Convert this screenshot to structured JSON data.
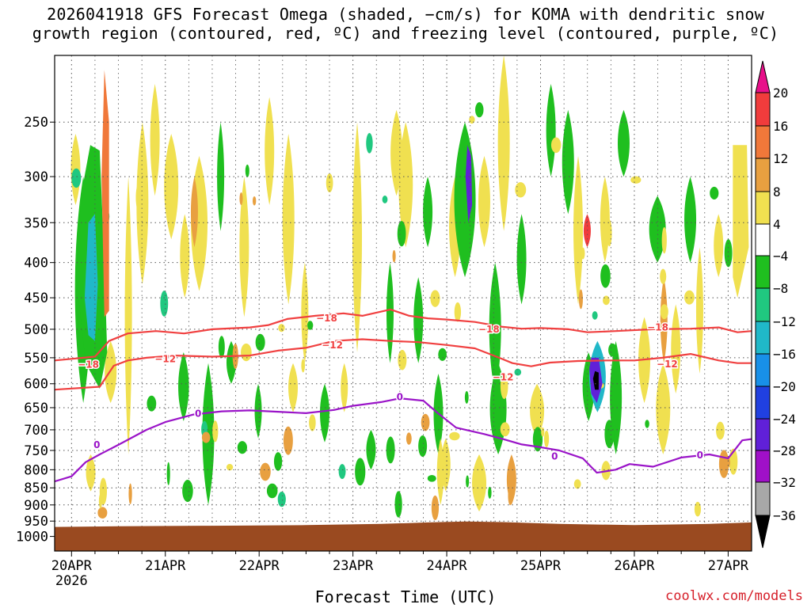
{
  "title_line1": "2026041918 GFS Forecast Omega (shaded, −cm/s) for KOMA with dendritic snow",
  "title_line2": "growth region (contoured, red, ºC) and freezing level (contoured, purple, ºC)",
  "xlabel": "Forecast Time (UTC)",
  "credit": "coolwx.com/models",
  "chart_data": {
    "type": "heatmap",
    "x_unit": "forecast day",
    "xlim": [
      19.82,
      27.25
    ],
    "x_ticks": [
      {
        "x": 20,
        "label": "20APR",
        "sub": "2026"
      },
      {
        "x": 21,
        "label": "21APR",
        "sub": ""
      },
      {
        "x": 22,
        "label": "22APR",
        "sub": ""
      },
      {
        "x": 23,
        "label": "23APR",
        "sub": ""
      },
      {
        "x": 24,
        "label": "24APR",
        "sub": ""
      },
      {
        "x": 25,
        "label": "25APR",
        "sub": ""
      },
      {
        "x": 26,
        "label": "26APR",
        "sub": ""
      },
      {
        "x": 27,
        "label": "27APR",
        "sub": ""
      }
    ],
    "y_unit": "hPa",
    "y_scale": "log",
    "ylim": [
      1050,
      200
    ],
    "y_ticks": [
      250,
      300,
      350,
      400,
      450,
      500,
      550,
      600,
      650,
      700,
      750,
      800,
      850,
      900,
      950,
      1000
    ],
    "grid": true,
    "colorbar": {
      "labels": [
        "20",
        "16",
        "12",
        "8",
        "4",
        "−4",
        "−8",
        "−12",
        "−16",
        "−20",
        "−24",
        "−28",
        "−32",
        "−36"
      ],
      "colors": {
        "top_arrow": "#e8108a",
        "c16_20": "#f03c3c",
        "c12_16": "#f0783a",
        "c8_12": "#e8a040",
        "c4_8": "#f0e050",
        "m4_4": "#ffffff",
        "m8_m4": "#1fbf1f",
        "m12_m8": "#20c880",
        "m16_m12": "#20b8c8",
        "m20_m16": "#1890e8",
        "m24_m20": "#2040e0",
        "m28_m24": "#6020d8",
        "m32_m28": "#a010c8",
        "m36_m32": "#a8a8a8",
        "bottom_arrow": "#000000"
      }
    },
    "terrain_color": "#9a4a20",
    "contours": [
      {
        "name": "-18C",
        "label": "−18",
        "color": "#f04040",
        "points": [
          [
            19.82,
            555
          ],
          [
            20.25,
            548
          ],
          [
            20.4,
            520
          ],
          [
            20.6,
            507
          ],
          [
            20.9,
            503
          ],
          [
            21.2,
            507
          ],
          [
            21.5,
            500
          ],
          [
            21.9,
            497
          ],
          [
            22.1,
            493
          ],
          [
            22.3,
            483
          ],
          [
            22.6,
            478
          ],
          [
            22.9,
            474
          ],
          [
            23.1,
            478
          ],
          [
            23.4,
            468
          ],
          [
            23.6,
            478
          ],
          [
            23.8,
            482
          ],
          [
            24.0,
            484
          ],
          [
            24.3,
            488
          ],
          [
            24.6,
            496
          ],
          [
            24.8,
            499
          ],
          [
            25.0,
            498
          ],
          [
            25.3,
            500
          ],
          [
            25.5,
            505
          ],
          [
            25.8,
            503
          ],
          [
            26.2,
            500
          ],
          [
            26.6,
            499
          ],
          [
            26.9,
            497
          ],
          [
            27.1,
            505
          ],
          [
            27.25,
            503
          ]
        ],
        "labels": [
          [
            20.18,
            563
          ],
          [
            22.72,
            482
          ],
          [
            24.45,
            500
          ],
          [
            26.25,
            497
          ]
        ]
      },
      {
        "name": "-12C",
        "label": "−12",
        "color": "#f04040",
        "points": [
          [
            19.82,
            612
          ],
          [
            20.3,
            606
          ],
          [
            20.45,
            565
          ],
          [
            20.6,
            555
          ],
          [
            20.8,
            550
          ],
          [
            21.1,
            546
          ],
          [
            21.5,
            548
          ],
          [
            21.9,
            546
          ],
          [
            22.2,
            537
          ],
          [
            22.5,
            532
          ],
          [
            22.8,
            520
          ],
          [
            23.1,
            517
          ],
          [
            23.4,
            520
          ],
          [
            23.7,
            522
          ],
          [
            24.0,
            527
          ],
          [
            24.3,
            533
          ],
          [
            24.5,
            546
          ],
          [
            24.7,
            560
          ],
          [
            24.9,
            566
          ],
          [
            25.1,
            559
          ],
          [
            25.4,
            556
          ],
          [
            25.7,
            555
          ],
          [
            26.0,
            555
          ],
          [
            26.3,
            550
          ],
          [
            26.6,
            543
          ],
          [
            26.9,
            555
          ],
          [
            27.1,
            560
          ],
          [
            27.25,
            560
          ]
        ],
        "labels": [
          [
            21.0,
            552
          ],
          [
            22.78,
            527
          ],
          [
            24.6,
            587
          ],
          [
            26.35,
            562
          ]
        ]
      },
      {
        "name": "0C",
        "label": "0",
        "color": "#9a14c8",
        "points": [
          [
            19.82,
            832
          ],
          [
            20.0,
            818
          ],
          [
            20.15,
            780
          ],
          [
            20.3,
            760
          ],
          [
            20.5,
            736
          ],
          [
            20.8,
            700
          ],
          [
            21.0,
            682
          ],
          [
            21.3,
            665
          ],
          [
            21.6,
            658
          ],
          [
            21.9,
            656
          ],
          [
            22.2,
            659
          ],
          [
            22.5,
            662
          ],
          [
            22.8,
            655
          ],
          [
            23.0,
            646
          ],
          [
            23.3,
            638
          ],
          [
            23.5,
            630
          ],
          [
            23.75,
            635
          ],
          [
            23.9,
            661
          ],
          [
            24.1,
            695
          ],
          [
            24.4,
            710
          ],
          [
            24.6,
            722
          ],
          [
            24.8,
            735
          ],
          [
            25.0,
            742
          ],
          [
            25.2,
            750
          ],
          [
            25.45,
            770
          ],
          [
            25.6,
            808
          ],
          [
            25.8,
            800
          ],
          [
            25.95,
            785
          ],
          [
            26.2,
            792
          ],
          [
            26.5,
            768
          ],
          [
            26.8,
            760
          ],
          [
            27.0,
            770
          ],
          [
            27.15,
            725
          ],
          [
            27.25,
            722
          ]
        ],
        "labels": [
          [
            20.27,
            736
          ],
          [
            21.35,
            663
          ],
          [
            23.5,
            627
          ],
          [
            25.15,
            765
          ],
          [
            26.7,
            762
          ]
        ]
      }
    ],
    "omega_areas": [
      {
        "name": "yellow-east-edge",
        "level": "4 to 8 (rising)",
        "color": "#f0e050",
        "pts": [
          [
            27.05,
            270
          ],
          [
            27.2,
            270
          ],
          [
            27.22,
            380
          ],
          [
            27.1,
            450
          ],
          [
            27.05,
            420
          ]
        ]
      },
      {
        "name": "green-band-20apr",
        "level": "-4 to -8",
        "color": "#1fbf1f",
        "pts": [
          [
            20.05,
            420
          ],
          [
            20.1,
            320
          ],
          [
            20.2,
            270
          ],
          [
            20.3,
            275
          ],
          [
            20.35,
            400
          ],
          [
            20.38,
            540
          ],
          [
            20.3,
            610
          ],
          [
            20.15,
            560
          ]
        ]
      },
      {
        "name": "cyan-core-20apr",
        "level": "-8 to -16",
        "color": "#20b8c8",
        "pts": [
          [
            20.14,
            450
          ],
          [
            20.18,
            350
          ],
          [
            20.25,
            340
          ],
          [
            20.28,
            430
          ],
          [
            20.25,
            520
          ],
          [
            20.18,
            510
          ]
        ]
      },
      {
        "name": "orange-band-20apr",
        "level": "8 to 16",
        "color": "#f0783a",
        "pts": [
          [
            20.32,
            300
          ],
          [
            20.35,
            210
          ],
          [
            20.4,
            250
          ],
          [
            20.4,
            470
          ],
          [
            20.35,
            480
          ]
        ]
      },
      {
        "name": "purple-core-24apr",
        "level": "-20 to -32",
        "color": "#6020d8",
        "pts": [
          [
            24.2,
            300
          ],
          [
            24.22,
            270
          ],
          [
            24.26,
            280
          ],
          [
            24.27,
            330
          ],
          [
            24.23,
            350
          ]
        ]
      },
      {
        "name": "purple-core-25apr",
        "level": "-24 to -32",
        "color": "#6020d8",
        "pts": [
          [
            25.52,
            570
          ],
          [
            25.54,
            550
          ],
          [
            25.62,
            550
          ],
          [
            25.66,
            600
          ],
          [
            25.6,
            640
          ],
          [
            25.54,
            620
          ]
        ]
      },
      {
        "name": "black-core-25apr",
        "level": "below -36",
        "color": "#000000",
        "pts": [
          [
            25.56,
            590
          ],
          [
            25.58,
            575
          ],
          [
            25.62,
            578
          ],
          [
            25.62,
            612
          ],
          [
            25.58,
            612
          ]
        ]
      }
    ]
  }
}
